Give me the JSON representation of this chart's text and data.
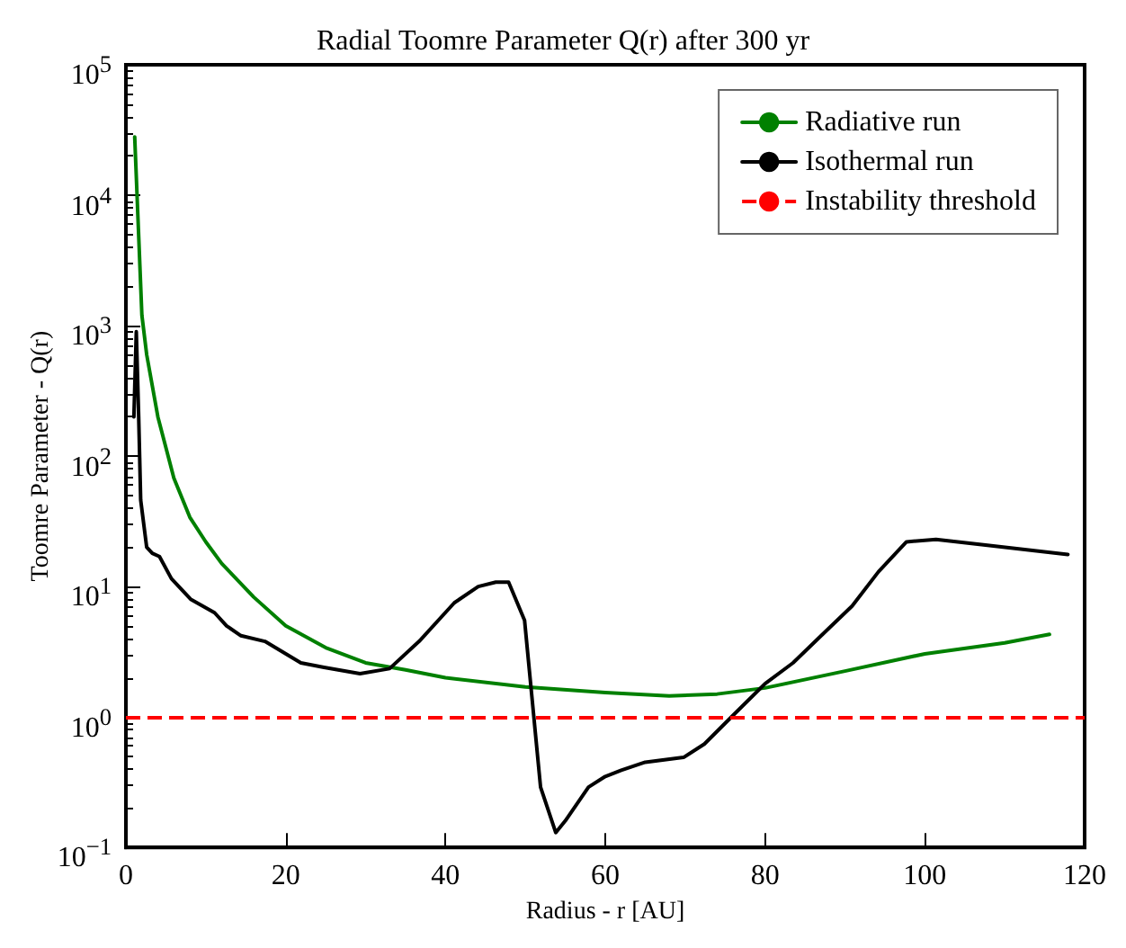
{
  "chart_data": {
    "type": "line",
    "title": "Radial Toomre Parameter Q(r) after 300 yr",
    "xlabel": "Radius - r [AU]",
    "ylabel": "Toomre Parameter - Q(r)",
    "xlim": [
      0,
      120
    ],
    "xticks": [
      0,
      20,
      40,
      60,
      80,
      100,
      120
    ],
    "ylim": [
      0.1,
      100000
    ],
    "yticks": [
      {
        "value": 0.1,
        "label": "10$^{−1}$"
      },
      {
        "value": 1,
        "label": "10$^{0}$"
      },
      {
        "value": 10,
        "label": "10$^{1}$"
      },
      {
        "value": 100,
        "label": "10$^{2}$"
      },
      {
        "value": 1000,
        "label": "10$^{3}$"
      },
      {
        "value": 10000,
        "label": "10$^{4}$"
      },
      {
        "value": 100000,
        "label": "10$^{5}$"
      }
    ],
    "log": "y",
    "grid": false,
    "legend": "top right",
    "marker": "none",
    "line_style": "solid",
    "series": [
      {
        "name": "Radiative run",
        "color": "#008000",
        "x": [
          1.1,
          2,
          2.6,
          4,
          6,
          8,
          10,
          12,
          16,
          20,
          25,
          30,
          35,
          40,
          50,
          60,
          68,
          74,
          80,
          90,
          100,
          110,
          115.6
        ],
        "values": [
          28000,
          1200,
          600,
          200,
          68,
          34,
          22,
          15,
          8.3,
          5,
          3.4,
          2.6,
          2.3,
          2,
          1.7,
          1.54,
          1.45,
          1.5,
          1.67,
          2.25,
          3.05,
          3.7,
          4.3
        ]
      },
      {
        "name": "Isothermal run",
        "color": "#000000",
        "x": [
          1,
          1.3,
          1.6,
          1.85,
          2.6,
          3.3,
          4.2,
          5.7,
          8.1,
          11.1,
          12.6,
          14.4,
          17.4,
          21.9,
          24.8,
          29.3,
          33,
          36.7,
          41.1,
          44.1,
          46.3,
          47.9,
          49.9,
          51.9,
          53.8,
          55,
          57.9,
          60,
          62,
          65,
          69.8,
          72.4,
          76.2,
          80,
          83.5,
          87.2,
          90.9,
          94.2,
          97.7,
          101.4,
          107.1,
          117.9
        ],
        "values": [
          200,
          900,
          200,
          46,
          20,
          18,
          17,
          11.5,
          8,
          6.3,
          5,
          4.2,
          3.8,
          2.6,
          2.4,
          2.15,
          2.35,
          3.8,
          7.5,
          10,
          10.8,
          10.8,
          5.5,
          0.29,
          0.13,
          0.16,
          0.29,
          0.35,
          0.39,
          0.45,
          0.49,
          0.62,
          1.06,
          1.8,
          2.6,
          4.3,
          7.1,
          13,
          22,
          23,
          21,
          17.6
        ]
      }
    ],
    "ref_lines": [
      {
        "axis": "y",
        "value": 1,
        "label": "Instability threshold",
        "color": "#ff0000",
        "line_style": "dashed"
      }
    ]
  }
}
